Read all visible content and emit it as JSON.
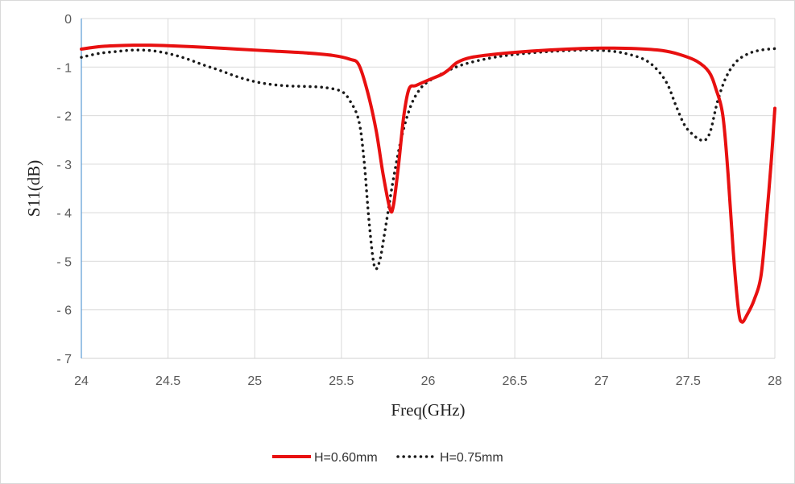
{
  "chart_data": {
    "type": "line",
    "title": "",
    "xlabel": "Freq(GHz)",
    "ylabel": "S11(dB)",
    "xlim": [
      24,
      28
    ],
    "ylim": [
      -7,
      0
    ],
    "x_ticks": [
      "24",
      "24.5",
      "25",
      "25.5",
      "26",
      "26.5",
      "27",
      "27.5",
      "28"
    ],
    "y_ticks": [
      "0",
      "-1",
      "-2",
      "-3",
      "-4",
      "-5",
      "-6",
      "-7"
    ],
    "grid": true,
    "legend_position": "bottom",
    "series": [
      {
        "name": "H=0.60mm",
        "color": "#e81010",
        "style": "solid",
        "points": [
          [
            24.0,
            -0.63
          ],
          [
            24.1,
            -0.58
          ],
          [
            24.2,
            -0.56
          ],
          [
            24.3,
            -0.55
          ],
          [
            24.4,
            -0.55
          ],
          [
            24.5,
            -0.56
          ],
          [
            24.7,
            -0.59
          ],
          [
            24.9,
            -0.63
          ],
          [
            25.1,
            -0.67
          ],
          [
            25.3,
            -0.71
          ],
          [
            25.45,
            -0.76
          ],
          [
            25.55,
            -0.84
          ],
          [
            25.6,
            -0.95
          ],
          [
            25.65,
            -1.5
          ],
          [
            25.7,
            -2.3
          ],
          [
            25.74,
            -3.2
          ],
          [
            25.78,
            -3.92
          ],
          [
            25.8,
            -3.85
          ],
          [
            25.83,
            -3.0
          ],
          [
            25.86,
            -2.0
          ],
          [
            25.89,
            -1.45
          ],
          [
            25.93,
            -1.38
          ],
          [
            26.0,
            -1.27
          ],
          [
            26.08,
            -1.15
          ],
          [
            26.12,
            -1.05
          ],
          [
            26.17,
            -0.9
          ],
          [
            26.25,
            -0.8
          ],
          [
            26.4,
            -0.73
          ],
          [
            26.6,
            -0.67
          ],
          [
            26.8,
            -0.63
          ],
          [
            27.0,
            -0.61
          ],
          [
            27.2,
            -0.62
          ],
          [
            27.35,
            -0.66
          ],
          [
            27.45,
            -0.74
          ],
          [
            27.55,
            -0.88
          ],
          [
            27.62,
            -1.1
          ],
          [
            27.66,
            -1.45
          ],
          [
            27.7,
            -2.0
          ],
          [
            27.73,
            -3.2
          ],
          [
            27.76,
            -4.8
          ],
          [
            27.79,
            -6.0
          ],
          [
            27.81,
            -6.25
          ],
          [
            27.84,
            -6.1
          ],
          [
            27.88,
            -5.8
          ],
          [
            27.92,
            -5.3
          ],
          [
            27.95,
            -4.2
          ],
          [
            27.98,
            -2.9
          ],
          [
            28.0,
            -1.85
          ]
        ]
      },
      {
        "name": "H=0.75mm",
        "color": "#1a1a1a",
        "style": "dotted",
        "points": [
          [
            24.0,
            -0.8
          ],
          [
            24.1,
            -0.72
          ],
          [
            24.2,
            -0.68
          ],
          [
            24.3,
            -0.65
          ],
          [
            24.4,
            -0.66
          ],
          [
            24.5,
            -0.72
          ],
          [
            24.6,
            -0.82
          ],
          [
            24.7,
            -0.95
          ],
          [
            24.8,
            -1.07
          ],
          [
            24.9,
            -1.2
          ],
          [
            25.0,
            -1.3
          ],
          [
            25.1,
            -1.36
          ],
          [
            25.2,
            -1.39
          ],
          [
            25.3,
            -1.4
          ],
          [
            25.4,
            -1.42
          ],
          [
            25.5,
            -1.5
          ],
          [
            25.55,
            -1.7
          ],
          [
            25.6,
            -2.1
          ],
          [
            25.63,
            -2.9
          ],
          [
            25.66,
            -4.2
          ],
          [
            25.69,
            -5.1
          ],
          [
            25.72,
            -5.0
          ],
          [
            25.75,
            -4.4
          ],
          [
            25.8,
            -3.3
          ],
          [
            25.85,
            -2.4
          ],
          [
            25.9,
            -1.8
          ],
          [
            25.95,
            -1.47
          ],
          [
            26.0,
            -1.3
          ],
          [
            26.1,
            -1.1
          ],
          [
            26.2,
            -0.95
          ],
          [
            26.35,
            -0.82
          ],
          [
            26.5,
            -0.74
          ],
          [
            26.7,
            -0.68
          ],
          [
            26.9,
            -0.65
          ],
          [
            27.05,
            -0.67
          ],
          [
            27.15,
            -0.73
          ],
          [
            27.25,
            -0.85
          ],
          [
            27.32,
            -1.05
          ],
          [
            27.38,
            -1.35
          ],
          [
            27.43,
            -1.8
          ],
          [
            27.48,
            -2.2
          ],
          [
            27.53,
            -2.4
          ],
          [
            27.57,
            -2.5
          ],
          [
            27.6,
            -2.5
          ],
          [
            27.63,
            -2.3
          ],
          [
            27.67,
            -1.7
          ],
          [
            27.72,
            -1.2
          ],
          [
            27.78,
            -0.88
          ],
          [
            27.85,
            -0.72
          ],
          [
            27.92,
            -0.65
          ],
          [
            28.0,
            -0.62
          ]
        ]
      }
    ]
  }
}
